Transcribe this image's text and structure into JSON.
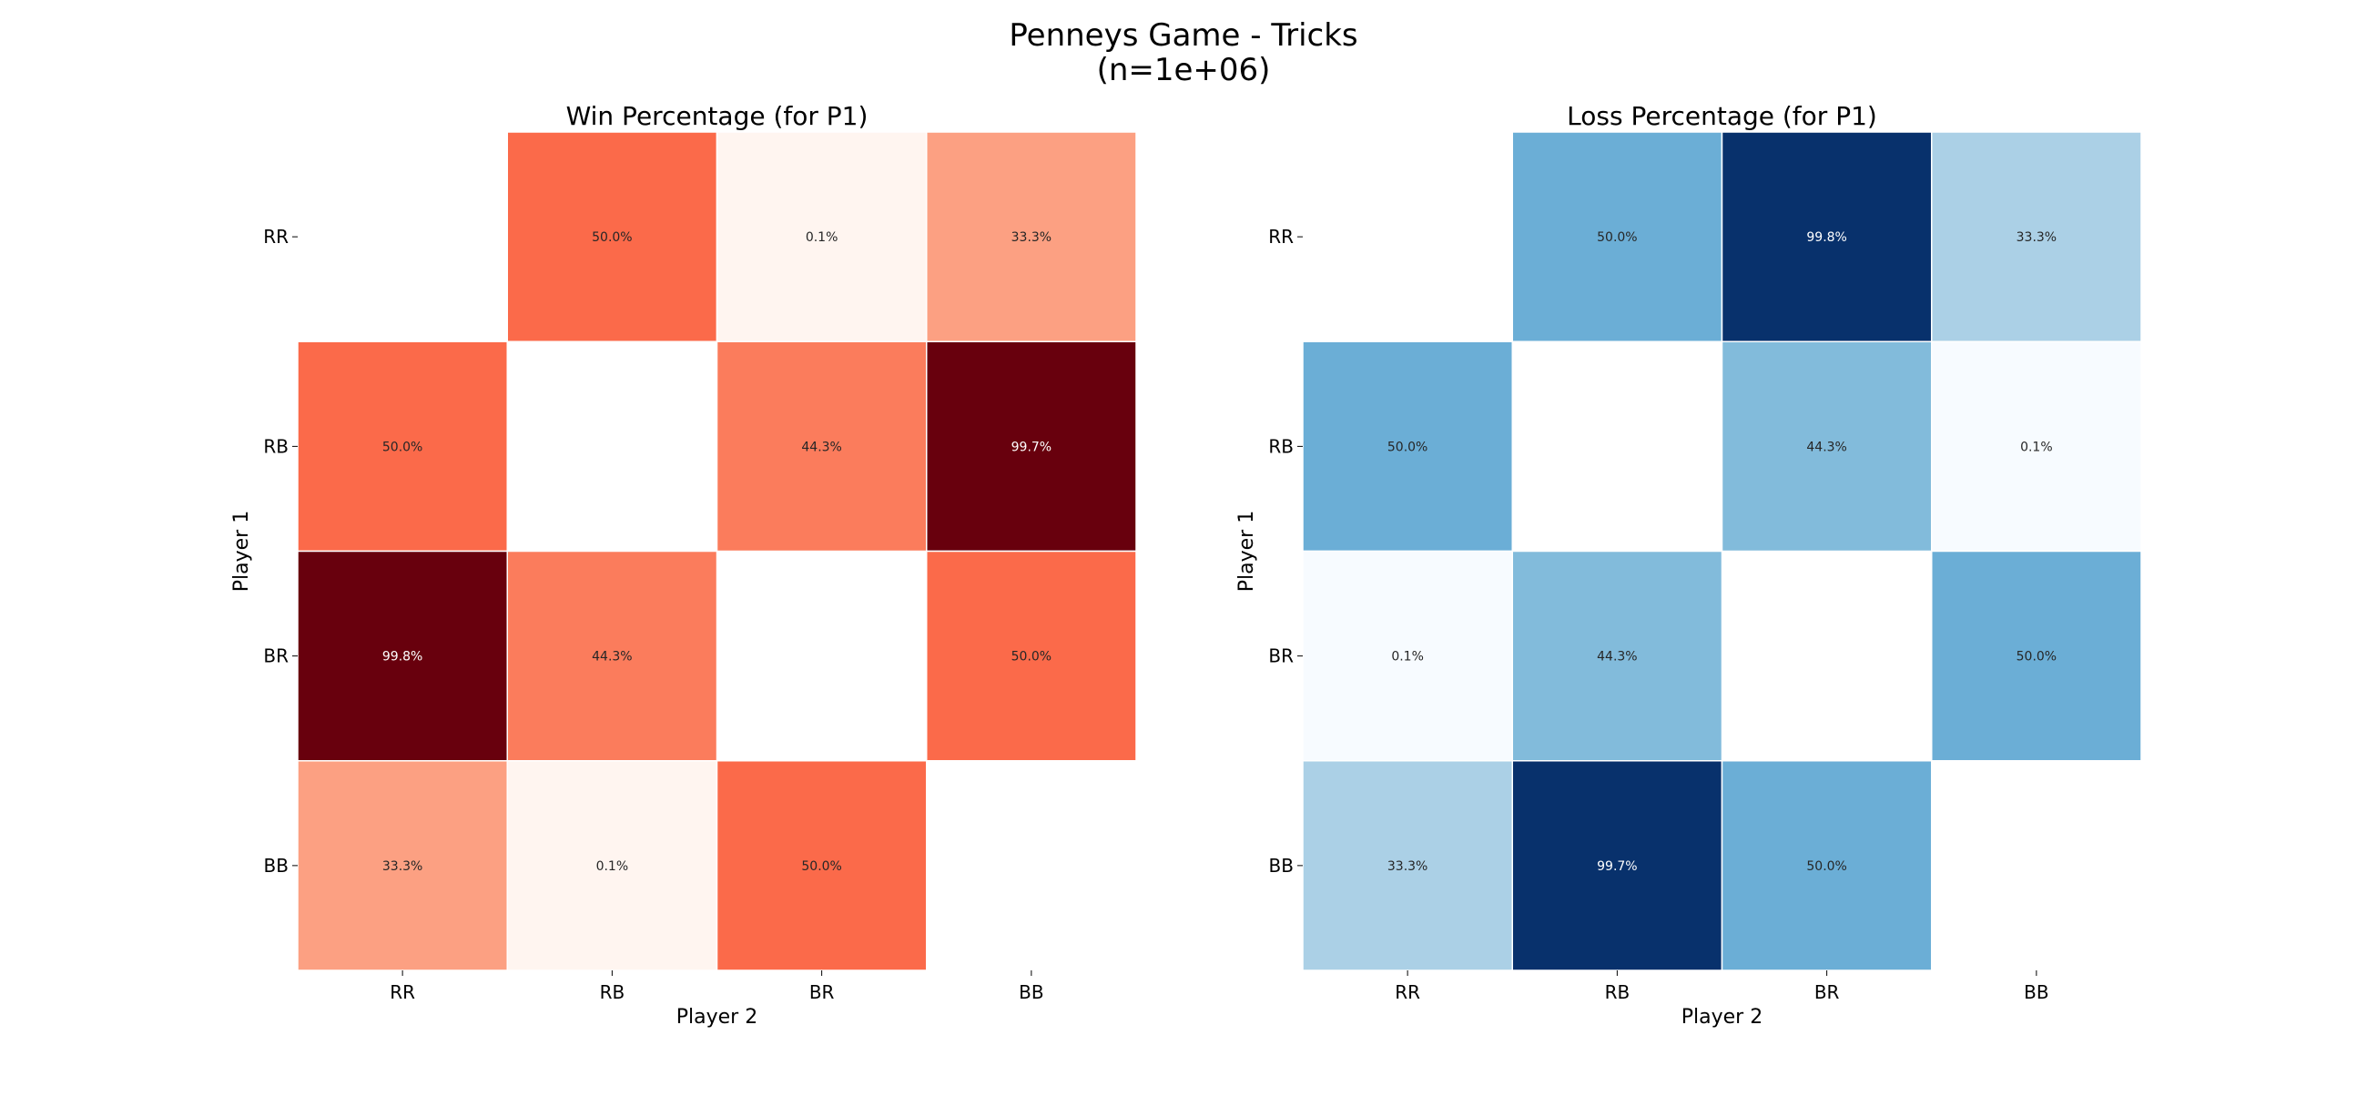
{
  "figure": {
    "title_line1": "Penneys Game - Tricks",
    "title_line2": "(n=1e+06)"
  },
  "chart_data": [
    {
      "type": "heatmap",
      "title": "Win Percentage (for P1)",
      "xlabel": "Player 2",
      "ylabel": "Player 1",
      "x_categories": [
        "RR",
        "RB",
        "BR",
        "BB"
      ],
      "y_categories": [
        "RR",
        "RB",
        "BR",
        "BB"
      ],
      "colormap": "Reds",
      "vmin": 0,
      "vmax": 100,
      "values": [
        [
          null,
          50.0,
          0.1,
          33.3
        ],
        [
          50.0,
          null,
          44.3,
          99.7
        ],
        [
          99.8,
          44.3,
          null,
          50.0
        ],
        [
          33.3,
          0.1,
          50.0,
          null
        ]
      ],
      "labels": [
        [
          null,
          "50.0%",
          "0.1%",
          "33.3%"
        ],
        [
          "50.0%",
          null,
          "44.3%",
          "99.7%"
        ],
        [
          "99.8%",
          "44.3%",
          null,
          "50.0%"
        ],
        [
          "33.3%",
          "0.1%",
          "50.0%",
          null
        ]
      ]
    },
    {
      "type": "heatmap",
      "title": "Loss Percentage (for P1)",
      "xlabel": "Player 2",
      "ylabel": "Player 1",
      "x_categories": [
        "RR",
        "RB",
        "BR",
        "BB"
      ],
      "y_categories": [
        "RR",
        "RB",
        "BR",
        "BB"
      ],
      "colormap": "Blues",
      "vmin": 0,
      "vmax": 100,
      "values": [
        [
          null,
          50.0,
          99.8,
          33.3
        ],
        [
          50.0,
          null,
          44.3,
          0.1
        ],
        [
          0.1,
          44.3,
          null,
          50.0
        ],
        [
          33.3,
          99.7,
          50.0,
          null
        ]
      ],
      "labels": [
        [
          null,
          "50.0%",
          "99.8%",
          "33.3%"
        ],
        [
          "50.0%",
          null,
          "44.3%",
          "0.1%"
        ],
        [
          "0.1%",
          "44.3%",
          null,
          "50.0%"
        ],
        [
          "33.3%",
          "99.7%",
          "50.0%",
          null
        ]
      ]
    }
  ]
}
